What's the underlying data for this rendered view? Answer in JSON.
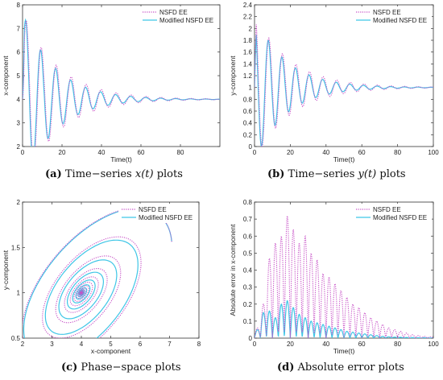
{
  "captions": [
    {
      "tag": "(a)",
      "pre": "Time−series ",
      "math": "x(t)",
      "post": " plots"
    },
    {
      "tag": "(b)",
      "pre": "Time−series ",
      "math": "y(t)",
      "post": " plots"
    },
    {
      "tag": "(c)",
      "pre": "Phase−space plots",
      "math": "",
      "post": ""
    },
    {
      "tag": "(d)",
      "pre": "Absolute error plots",
      "math": "",
      "post": ""
    }
  ],
  "colors": {
    "nsfd": "#c64fc6",
    "modified": "#3fc6e6",
    "axis": "#333333"
  },
  "chart_data": [
    {
      "type": "line",
      "xlabel": "Time(t)",
      "ylabel": "x-component",
      "xlim": [
        0,
        100
      ],
      "ylim": [
        2,
        8
      ],
      "xticks": [
        0,
        20,
        40,
        60,
        80
      ],
      "yticks": [
        2,
        3,
        4,
        5,
        6,
        7,
        8
      ],
      "legend": "top-right",
      "series": [
        {
          "name": "NSFD EE",
          "style": "dotted",
          "model": {
            "eq": 4,
            "amp": 3.7,
            "decay": 0.055,
            "period": 7.6,
            "phase": 0
          }
        },
        {
          "name": "Modified NSFD EE",
          "style": "solid",
          "model": {
            "eq": 4,
            "amp": 3.7,
            "decay": 0.062,
            "period": 7.6,
            "phase": 0.25
          }
        }
      ]
    },
    {
      "type": "line",
      "xlabel": "Time(t)",
      "ylabel": "y-component",
      "xlim": [
        0,
        100
      ],
      "ylim": [
        0,
        2.4
      ],
      "xticks": [
        0,
        20,
        40,
        60,
        80,
        100
      ],
      "yticks": [
        0,
        0.2,
        0.4,
        0.6,
        0.8,
        1,
        1.2,
        1.4,
        1.6,
        1.8,
        2,
        2.2,
        2.4
      ],
      "legend": "top-right",
      "series": [
        {
          "name": "NSFD EE",
          "style": "dotted",
          "model": {
            "eq": 1,
            "amp": 1.25,
            "decay": 0.05,
            "period": 7.6,
            "phase": 1.2
          }
        },
        {
          "name": "Modified NSFD EE",
          "style": "solid",
          "model": {
            "eq": 1,
            "amp": 1.25,
            "decay": 0.058,
            "period": 7.6,
            "phase": 1.45
          }
        }
      ]
    },
    {
      "type": "line",
      "xlabel": "x-component",
      "ylabel": "y-component",
      "xlim": [
        2,
        8
      ],
      "ylim": [
        0.5,
        2
      ],
      "xticks": [
        2,
        3,
        4,
        5,
        6,
        7,
        8
      ],
      "yticks": [
        0.5,
        1,
        1.5,
        2
      ],
      "legend": "top-right",
      "series": [
        {
          "name": "NSFD EE",
          "style": "dotted",
          "model": {
            "cx": 4,
            "cy": 1,
            "rx": 3.7,
            "ry": 1.05,
            "decay": 0.055
          }
        },
        {
          "name": "Modified NSFD EE",
          "style": "solid",
          "model": {
            "cx": 4,
            "cy": 1,
            "rx": 3.7,
            "ry": 1.05,
            "decay": 0.062
          }
        }
      ]
    },
    {
      "type": "line",
      "xlabel": "Time(t)",
      "ylabel": "Absolute error in x-component",
      "xlim": [
        0,
        100
      ],
      "ylim": [
        0,
        0.8
      ],
      "xticks": [
        0,
        20,
        40,
        60,
        80,
        100
      ],
      "yticks": [
        0,
        0.1,
        0.2,
        0.3,
        0.4,
        0.5,
        0.6,
        0.7,
        0.8
      ],
      "legend": "top-right",
      "series": [
        {
          "name": "NSFD EE",
          "style": "dotted",
          "peaks": [
            0.06,
            0.2,
            0.47,
            0.56,
            0.6,
            0.72,
            0.64,
            0.56,
            0.6,
            0.5,
            0.46,
            0.38,
            0.36,
            0.32,
            0.28,
            0.24,
            0.2,
            0.18,
            0.15,
            0.12,
            0.1,
            0.08,
            0.06,
            0.05,
            0.04,
            0.03,
            0.02,
            0.015,
            0.01,
            0.008
          ]
        },
        {
          "name": "Modified NSFD EE",
          "style": "solid",
          "peaks": [
            0.05,
            0.15,
            0.16,
            0.12,
            0.2,
            0.22,
            0.18,
            0.14,
            0.12,
            0.1,
            0.09,
            0.08,
            0.07,
            0.06,
            0.05,
            0.04,
            0.035,
            0.03,
            0.025,
            0.02,
            0.015,
            0.01,
            0.008,
            0.006,
            0.005,
            0.004,
            0.003,
            0.002,
            0.002,
            0.001
          ]
        }
      ]
    }
  ]
}
